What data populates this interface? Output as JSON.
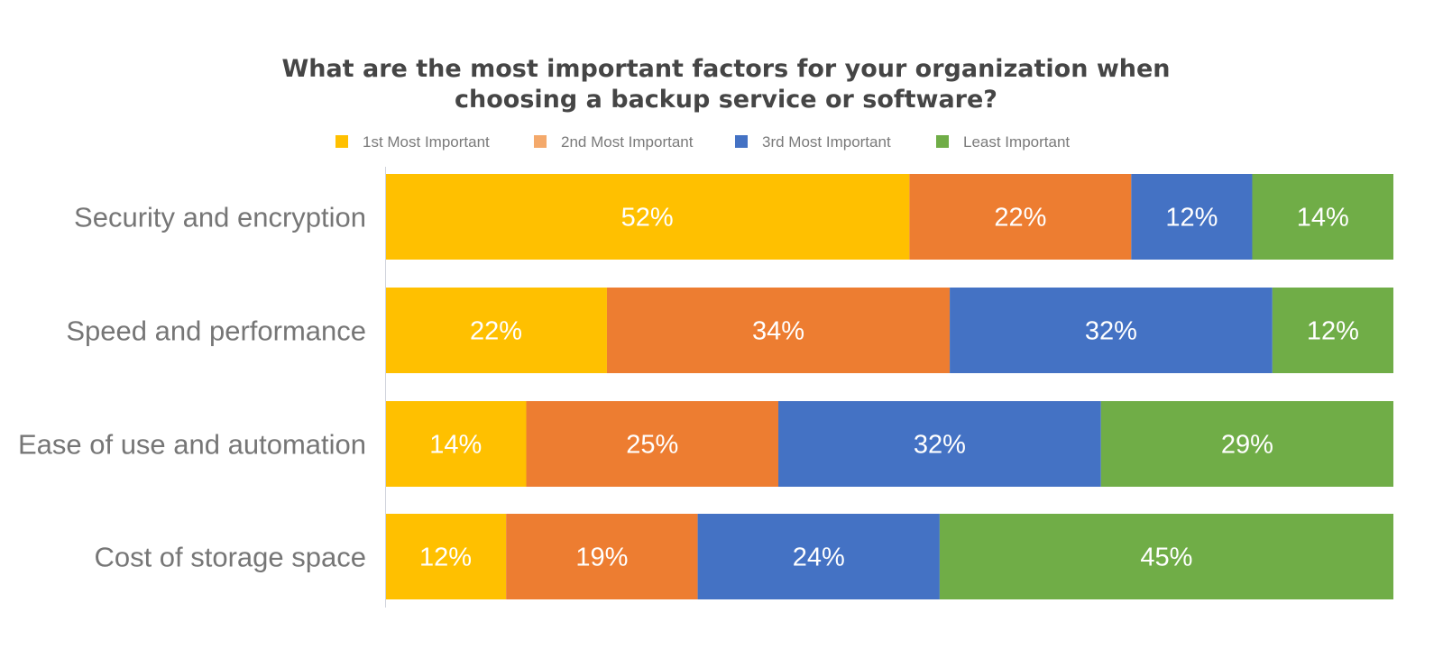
{
  "chart_data": {
    "type": "bar",
    "orientation": "horizontal",
    "stacked": "100-percent",
    "title": "What are the most important factors for your organization when choosing a backup service or software?",
    "title_lines": [
      "What are the most important factors for your organization when",
      "choosing a backup service or software?"
    ],
    "xlabel": "",
    "ylabel": "",
    "xlim": [
      0,
      100
    ],
    "grid": false,
    "legend_position": "top",
    "categories": [
      "Security and encryption",
      "Speed and performance",
      "Ease of use and automation",
      "Cost of storage space"
    ],
    "series": [
      {
        "name": "1st Most Important",
        "color": "#FFC000",
        "legend_color": "#FFC000",
        "values": [
          52,
          22,
          14,
          12
        ],
        "labels": [
          "52%",
          "22%",
          "14%",
          "12%"
        ]
      },
      {
        "name": "2nd Most Important",
        "color": "#ED7D31",
        "legend_color": "#F4A96B",
        "values": [
          22,
          34,
          25,
          19
        ],
        "labels": [
          "22%",
          "34%",
          "25%",
          "19%"
        ]
      },
      {
        "name": "3rd Most Important",
        "color": "#4472C4",
        "legend_color": "#4472C4",
        "values": [
          12,
          32,
          32,
          24
        ],
        "labels": [
          "12%",
          "32%",
          "32%",
          "24%"
        ]
      },
      {
        "name": "Least Important",
        "color": "#70AD47",
        "legend_color": "#70AD47",
        "values": [
          14,
          12,
          29,
          45
        ],
        "labels": [
          "14%",
          "12%",
          "29%",
          "45%"
        ]
      }
    ]
  }
}
